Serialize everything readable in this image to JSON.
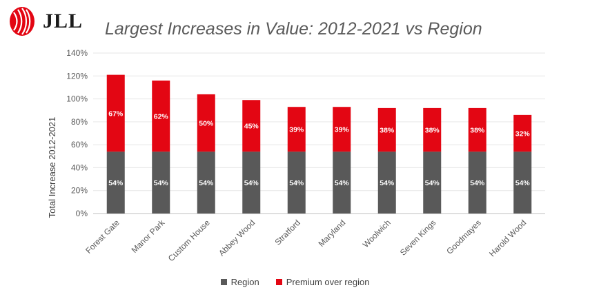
{
  "brand": {
    "logo_text": "JLL",
    "logo_color": "#e30613"
  },
  "chart_data": {
    "type": "bar",
    "stacked": true,
    "title": "Largest Increases in Value: 2012-2021 vs Region",
    "xlabel": "",
    "ylabel": "Total Increase 2012-2021",
    "ylim": [
      0,
      140
    ],
    "ytick_labels": [
      "0%",
      "20%",
      "40%",
      "60%",
      "80%",
      "100%",
      "120%",
      "140%"
    ],
    "grid": true,
    "legend_position": "bottom",
    "categories": [
      "Forest Gate",
      "Manor Park",
      "Custom House",
      "Abbey Wood",
      "Stratford",
      "Maryland",
      "Woolwich",
      "Seven Kings",
      "Goodmayes",
      "Harold Wood"
    ],
    "series": [
      {
        "name": "Region",
        "color": "#595959",
        "values": [
          54,
          54,
          54,
          54,
          54,
          54,
          54,
          54,
          54,
          54
        ],
        "labels": [
          "54%",
          "54%",
          "54%",
          "54%",
          "54%",
          "54%",
          "54%",
          "54%",
          "54%",
          "54%"
        ]
      },
      {
        "name": "Premium over region",
        "color": "#e30613",
        "values": [
          67,
          62,
          50,
          45,
          39,
          39,
          38,
          38,
          38,
          32
        ],
        "labels": [
          "67%",
          "62%",
          "50%",
          "45%",
          "39%",
          "39%",
          "38%",
          "38%",
          "38%",
          "32%"
        ]
      }
    ]
  }
}
